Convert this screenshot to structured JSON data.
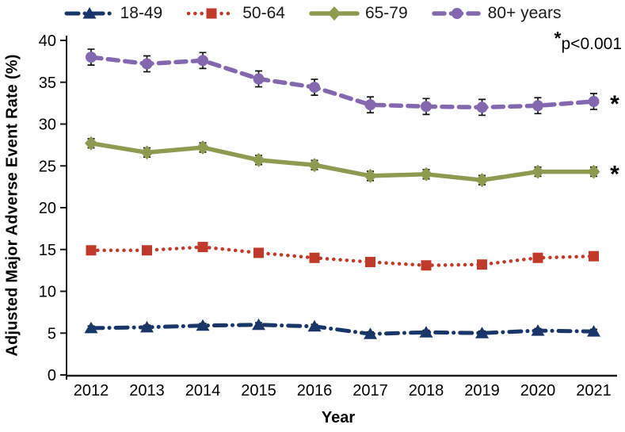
{
  "chart_data": {
    "type": "line",
    "title": "",
    "xlabel": "Year",
    "ylabel": "Adjusted Major Adverse Event Rate (%)",
    "ylim": [
      0,
      40
    ],
    "y_tick_step": 5,
    "y_tick_labels": [
      "0",
      "5",
      "10",
      "15",
      "20",
      "25",
      "30",
      "35",
      "40"
    ],
    "grid": false,
    "legend_position": "top",
    "error_bars": true,
    "annotation_star": "*",
    "annotation_text": "p<0.001",
    "significance_marker": "*",
    "categories": [
      "2012",
      "2013",
      "2014",
      "2015",
      "2016",
      "2017",
      "2018",
      "2019",
      "2020",
      "2021"
    ],
    "series": [
      {
        "name": "18-49",
        "color": "#1A3668",
        "line_style": "dash-dot",
        "marker": "triangle",
        "values": [
          5.6,
          5.7,
          5.9,
          6.0,
          5.8,
          4.9,
          5.1,
          5.0,
          5.3,
          5.2
        ],
        "error": 0.25,
        "significant": false
      },
      {
        "name": "50-64",
        "color": "#C03A2B",
        "line_style": "dotted",
        "marker": "square",
        "values": [
          14.9,
          14.9,
          15.3,
          14.6,
          14.0,
          13.5,
          13.1,
          13.2,
          14.0,
          14.2
        ],
        "error": 0.3,
        "significant": false
      },
      {
        "name": "65-79",
        "color": "#8C9B50",
        "line_style": "solid",
        "marker": "diamond",
        "values": [
          27.7,
          26.6,
          27.2,
          25.7,
          25.1,
          23.8,
          24.0,
          23.3,
          24.3,
          24.3
        ],
        "error": 0.55,
        "significant": true
      },
      {
        "name": "80+ years",
        "color": "#8468AE",
        "line_style": "dashed",
        "marker": "circle",
        "values": [
          38.0,
          37.2,
          37.6,
          35.4,
          34.4,
          32.3,
          32.1,
          32.0,
          32.2,
          32.7
        ],
        "error": 0.95,
        "significant": true
      }
    ]
  }
}
